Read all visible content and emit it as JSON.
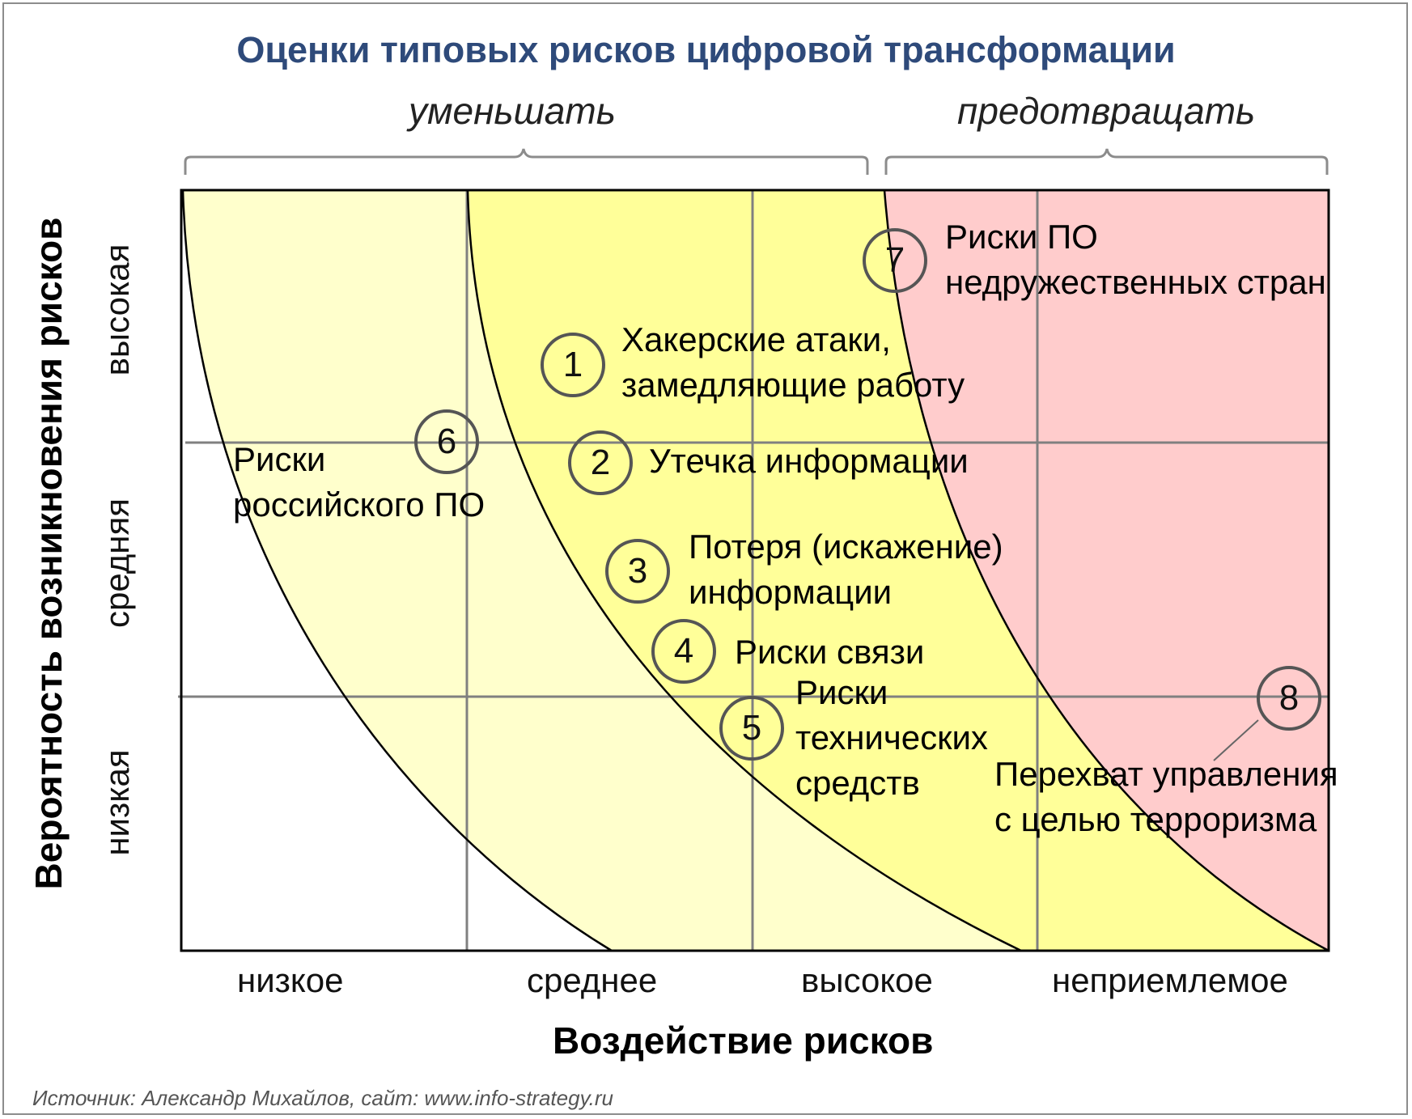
{
  "title": "Оценки типовых рисков цифровой трансформации",
  "groups": {
    "left": "уменьшать",
    "right": "предотвращать"
  },
  "x_axis": {
    "title": "Воздействие рисков",
    "ticks": [
      "низкое",
      "среднее",
      "высокое",
      "неприемлемое"
    ]
  },
  "y_axis": {
    "title": "Вероятность возникновения рисков",
    "ticks": [
      "низкая",
      "средняя",
      "высокая"
    ]
  },
  "risks": [
    {
      "num": "1",
      "label_lines": [
        "Хакерские атаки,",
        "замедляющие работу"
      ]
    },
    {
      "num": "2",
      "label_lines": [
        "Утечка информации"
      ]
    },
    {
      "num": "3",
      "label_lines": [
        "Потеря (искажение)",
        "информации"
      ]
    },
    {
      "num": "4",
      "label_lines": [
        "Риски связи"
      ]
    },
    {
      "num": "5",
      "label_lines": [
        "Риски",
        "технических",
        "средств"
      ]
    },
    {
      "num": "6",
      "label_lines": [
        "Риски",
        "российского ПО"
      ]
    },
    {
      "num": "7",
      "label_lines": [
        "Риски ПО",
        "недружественных стран"
      ]
    },
    {
      "num": "8",
      "label_lines": [
        "Перехват управления",
        "с целью терроризма"
      ]
    }
  ],
  "source": "Источник: Александр Михайлов, сайт: www.info-strategy.ru",
  "colors": {
    "title": "#2e4a7a",
    "zone_low": "#ffffff",
    "zone_pale": "#ffffcc",
    "zone_yellow": "#ffff99",
    "zone_red": "#ffcccc",
    "grid": "#808080"
  }
}
